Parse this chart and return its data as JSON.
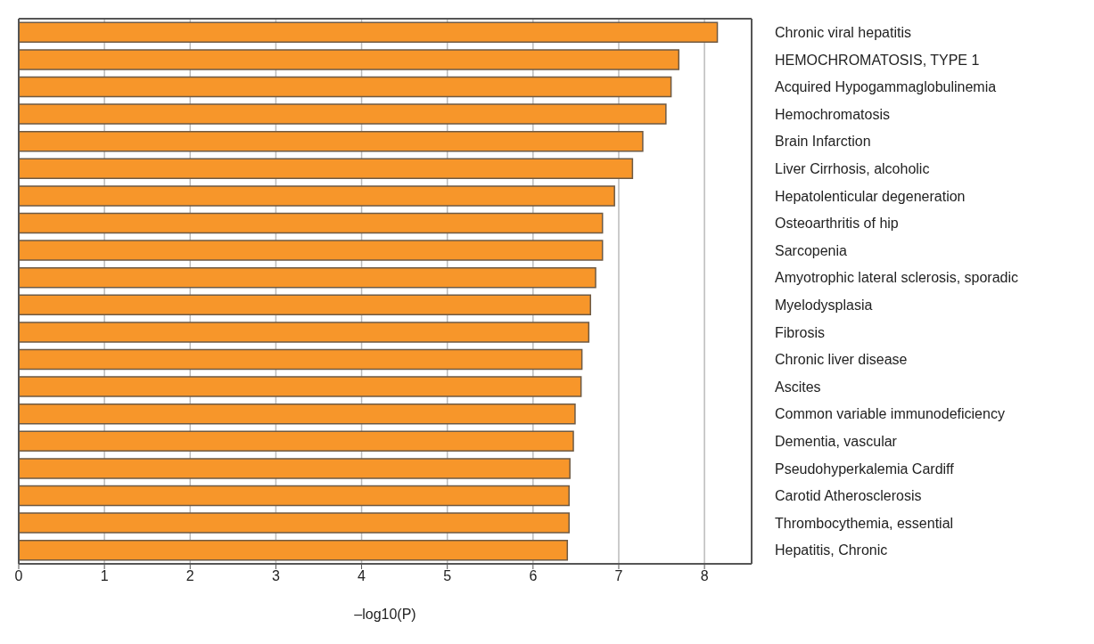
{
  "chart_data": {
    "type": "bar",
    "orientation": "horizontal",
    "xlabel": "–log10(P)",
    "categories": [
      "Chronic viral hepatitis",
      "HEMOCHROMATOSIS, TYPE 1",
      "Acquired Hypogammaglobulinemia",
      "Hemochromatosis",
      "Brain Infarction",
      "Liver Cirrhosis, alcoholic",
      "Hepatolenticular degeneration",
      "Osteoarthritis of hip",
      "Sarcopenia",
      "Amyotrophic lateral sclerosis, sporadic",
      "Myelodysplasia",
      "Fibrosis",
      "Chronic liver disease",
      "Ascites",
      "Common variable immunodeficiency",
      "Dementia, vascular",
      "Pseudohyperkalemia Cardiff",
      "Carotid Atherosclerosis",
      "Thrombocythemia, essential",
      "Hepatitis, Chronic"
    ],
    "values": [
      8.15,
      7.7,
      7.61,
      7.55,
      7.28,
      7.16,
      6.95,
      6.81,
      6.81,
      6.73,
      6.67,
      6.65,
      6.57,
      6.56,
      6.49,
      6.47,
      6.43,
      6.42,
      6.42,
      6.4
    ],
    "color": "#f7962a",
    "xlim": [
      0,
      8.55
    ],
    "xticks": [
      0,
      1,
      2,
      3,
      4,
      5,
      6,
      7,
      8
    ],
    "grid": "x"
  }
}
